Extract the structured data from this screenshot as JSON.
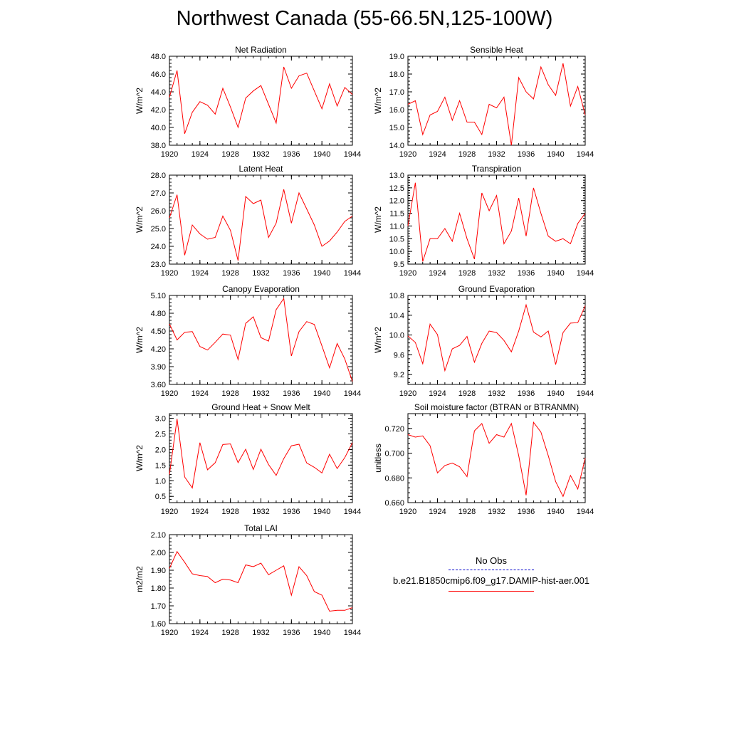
{
  "figure": {
    "title": "Northwest Canada (55-66.5N,125-100W)"
  },
  "legend": {
    "entries": [
      {
        "label": "No Obs",
        "color": "#0000cc",
        "style": "dashed"
      },
      {
        "label": "b.e21.B1850cmip6.f09_g17.DAMIP-hist-aer.001",
        "color": "#ff0000",
        "style": "solid"
      }
    ]
  },
  "chart_data": [
    {
      "type": "line",
      "title": "Net Radiation",
      "ylabel": "W/m^2",
      "xlim": [
        1920,
        1944
      ],
      "ylim": [
        38,
        48
      ],
      "xticks": [
        "1920",
        "1924",
        "1928",
        "1932",
        "1936",
        "1940",
        "1944"
      ],
      "yticks": [
        "38.0",
        "40.0",
        "42.0",
        "44.0",
        "46.0",
        "48.0"
      ],
      "x": [
        1920,
        1921,
        1922,
        1923,
        1924,
        1925,
        1926,
        1927,
        1928,
        1929,
        1930,
        1931,
        1932,
        1933,
        1934,
        1935,
        1936,
        1937,
        1938,
        1939,
        1940,
        1941,
        1942,
        1943,
        1944
      ],
      "series": [
        {
          "values": [
            43.4,
            46.4,
            39.3,
            41.7,
            42.9,
            42.5,
            41.5,
            44.4,
            42.3,
            40.0,
            43.3,
            44.1,
            44.7,
            42.6,
            40.5,
            46.8,
            44.4,
            45.8,
            46.1,
            44.1,
            42.1,
            44.9,
            42.4,
            44.5,
            43.7
          ],
          "color": "#ff0000"
        }
      ]
    },
    {
      "type": "line",
      "title": "Sensible Heat",
      "ylabel": "W/m^2",
      "xlim": [
        1920,
        1944
      ],
      "ylim": [
        14,
        19
      ],
      "xticks": [
        "1920",
        "1924",
        "1928",
        "1932",
        "1936",
        "1940",
        "1944"
      ],
      "yticks": [
        "14.0",
        "15.0",
        "16.0",
        "17.0",
        "18.0",
        "19.0"
      ],
      "x": [
        1920,
        1921,
        1922,
        1923,
        1924,
        1925,
        1926,
        1927,
        1928,
        1929,
        1930,
        1931,
        1932,
        1933,
        1934,
        1935,
        1936,
        1937,
        1938,
        1939,
        1940,
        1941,
        1942,
        1943,
        1944
      ],
      "series": [
        {
          "values": [
            16.3,
            16.5,
            14.6,
            15.7,
            15.9,
            16.7,
            15.4,
            16.5,
            15.3,
            15.3,
            14.6,
            16.3,
            16.1,
            16.7,
            14.0,
            17.8,
            17.0,
            16.6,
            18.4,
            17.4,
            16.8,
            18.6,
            16.2,
            17.3,
            15.7
          ],
          "color": "#ff0000"
        }
      ]
    },
    {
      "type": "line",
      "title": "Latent Heat",
      "ylabel": "W/m^2",
      "xlim": [
        1920,
        1944
      ],
      "ylim": [
        23,
        28
      ],
      "xticks": [
        "1920",
        "1924",
        "1928",
        "1932",
        "1936",
        "1940",
        "1944"
      ],
      "yticks": [
        "23.0",
        "24.0",
        "25.0",
        "26.0",
        "27.0",
        "28.0"
      ],
      "x": [
        1920,
        1921,
        1922,
        1923,
        1924,
        1925,
        1926,
        1927,
        1928,
        1929,
        1930,
        1931,
        1932,
        1933,
        1934,
        1935,
        1936,
        1937,
        1938,
        1939,
        1940,
        1941,
        1942,
        1943,
        1944
      ],
      "series": [
        {
          "values": [
            25.6,
            26.9,
            23.5,
            25.2,
            24.7,
            24.4,
            24.5,
            25.7,
            24.9,
            23.2,
            26.8,
            26.4,
            26.6,
            24.5,
            25.3,
            27.2,
            25.3,
            27.0,
            26.1,
            25.2,
            24.0,
            24.3,
            24.8,
            25.4,
            25.7
          ],
          "color": "#ff0000"
        }
      ]
    },
    {
      "type": "line",
      "title": "Transpiration",
      "ylabel": "W/m^2",
      "xlim": [
        1920,
        1944
      ],
      "ylim": [
        9.5,
        13.0
      ],
      "xticks": [
        "1920",
        "1924",
        "1928",
        "1932",
        "1936",
        "1940",
        "1944"
      ],
      "yticks": [
        "9.5",
        "10.0",
        "10.5",
        "11.0",
        "11.5",
        "12.0",
        "12.5",
        "13.0"
      ],
      "x": [
        1920,
        1921,
        1922,
        1923,
        1924,
        1925,
        1926,
        1927,
        1928,
        1929,
        1930,
        1931,
        1932,
        1933,
        1934,
        1935,
        1936,
        1937,
        1938,
        1939,
        1940,
        1941,
        1942,
        1943,
        1944
      ],
      "series": [
        {
          "values": [
            11.0,
            12.7,
            9.6,
            10.5,
            10.5,
            10.9,
            10.4,
            11.5,
            10.5,
            9.7,
            12.3,
            11.6,
            12.2,
            10.3,
            10.8,
            12.1,
            10.6,
            12.5,
            11.5,
            10.6,
            10.4,
            10.5,
            10.3,
            11.1,
            11.5
          ],
          "color": "#ff0000"
        }
      ]
    },
    {
      "type": "line",
      "title": "Canopy Evaporation",
      "ylabel": "W/m^2",
      "xlim": [
        1920,
        1944
      ],
      "ylim": [
        3.6,
        5.1
      ],
      "xticks": [
        "1920",
        "1924",
        "1928",
        "1932",
        "1936",
        "1940",
        "1944"
      ],
      "yticks": [
        "3.60",
        "3.90",
        "4.20",
        "4.50",
        "4.80",
        "5.10"
      ],
      "x": [
        1920,
        1921,
        1922,
        1923,
        1924,
        1925,
        1926,
        1927,
        1928,
        1929,
        1930,
        1931,
        1932,
        1933,
        1934,
        1935,
        1936,
        1937,
        1938,
        1939,
        1940,
        1941,
        1942,
        1943,
        1944
      ],
      "series": [
        {
          "values": [
            4.62,
            4.35,
            4.48,
            4.49,
            4.24,
            4.18,
            4.31,
            4.45,
            4.43,
            4.02,
            4.63,
            4.74,
            4.39,
            4.33,
            4.86,
            5.05,
            4.08,
            4.49,
            4.66,
            4.61,
            4.25,
            3.88,
            4.29,
            4.03,
            3.65
          ],
          "color": "#ff0000"
        }
      ]
    },
    {
      "type": "line",
      "title": "Ground Evaporation",
      "ylabel": "W/m^2",
      "xlim": [
        1920,
        1944
      ],
      "ylim": [
        9.0,
        10.8
      ],
      "xticks": [
        "1920",
        "1924",
        "1928",
        "1932",
        "1936",
        "1940",
        "1944"
      ],
      "yticks": [
        "9.2",
        "9.6",
        "10.0",
        "10.4",
        "10.8"
      ],
      "x": [
        1920,
        1921,
        1922,
        1923,
        1924,
        1925,
        1926,
        1927,
        1928,
        1929,
        1930,
        1931,
        1932,
        1933,
        1934,
        1935,
        1936,
        1937,
        1938,
        1939,
        1940,
        1941,
        1942,
        1943,
        1944
      ],
      "series": [
        {
          "values": [
            9.98,
            9.85,
            9.42,
            10.22,
            10.01,
            9.28,
            9.72,
            9.79,
            9.97,
            9.45,
            9.83,
            10.08,
            10.05,
            9.89,
            9.66,
            10.08,
            10.61,
            10.06,
            9.96,
            10.08,
            9.4,
            10.05,
            10.24,
            10.25,
            10.59
          ],
          "color": "#ff0000"
        }
      ]
    },
    {
      "type": "line",
      "title": "Ground Heat + Snow Melt",
      "ylabel": "W/m^2",
      "xlim": [
        1920,
        1944
      ],
      "ylim": [
        0.3,
        3.15
      ],
      "xticks": [
        "1920",
        "1924",
        "1928",
        "1932",
        "1936",
        "1940",
        "1944"
      ],
      "yticks": [
        "0.5",
        "1.0",
        "1.5",
        "2.0",
        "2.5",
        "3.0"
      ],
      "x": [
        1920,
        1921,
        1922,
        1923,
        1924,
        1925,
        1926,
        1927,
        1928,
        1929,
        1930,
        1931,
        1932,
        1933,
        1934,
        1935,
        1936,
        1937,
        1938,
        1939,
        1940,
        1941,
        1942,
        1943,
        1944
      ],
      "series": [
        {
          "values": [
            1.2,
            2.98,
            1.12,
            0.77,
            2.22,
            1.35,
            1.58,
            2.16,
            2.18,
            1.58,
            2.01,
            1.36,
            2.01,
            1.52,
            1.17,
            1.71,
            2.12,
            2.17,
            1.57,
            1.43,
            1.25,
            1.85,
            1.39,
            1.74,
            2.22
          ],
          "color": "#ff0000"
        }
      ]
    },
    {
      "type": "line",
      "title": "Soil moisture factor (BTRAN or BTRANMN)",
      "ylabel": "unitless",
      "xlim": [
        1920,
        1944
      ],
      "ylim": [
        0.66,
        0.732
      ],
      "xticks": [
        "1920",
        "1924",
        "1928",
        "1932",
        "1936",
        "1940",
        "1944"
      ],
      "yticks": [
        "0.660",
        "0.680",
        "0.700",
        "0.720"
      ],
      "x": [
        1920,
        1921,
        1922,
        1923,
        1924,
        1925,
        1926,
        1927,
        1928,
        1929,
        1930,
        1931,
        1932,
        1933,
        1934,
        1935,
        1936,
        1937,
        1938,
        1939,
        1940,
        1941,
        1942,
        1943,
        1944
      ],
      "series": [
        {
          "values": [
            0.715,
            0.713,
            0.714,
            0.706,
            0.684,
            0.69,
            0.692,
            0.689,
            0.681,
            0.718,
            0.724,
            0.708,
            0.715,
            0.713,
            0.724,
            0.698,
            0.666,
            0.725,
            0.717,
            0.698,
            0.677,
            0.665,
            0.682,
            0.671,
            0.696
          ],
          "color": "#ff0000"
        }
      ]
    },
    {
      "type": "line",
      "title": "Total LAI",
      "ylabel": "m2/m2",
      "xlim": [
        1920,
        1944
      ],
      "ylim": [
        1.6,
        2.1
      ],
      "xticks": [
        "1920",
        "1924",
        "1928",
        "1932",
        "1936",
        "1940",
        "1944"
      ],
      "yticks": [
        "1.60",
        "1.70",
        "1.80",
        "1.90",
        "2.00",
        "2.10"
      ],
      "x": [
        1920,
        1921,
        1922,
        1923,
        1924,
        1925,
        1926,
        1927,
        1928,
        1929,
        1930,
        1931,
        1932,
        1933,
        1934,
        1935,
        1936,
        1937,
        1938,
        1939,
        1940,
        1941,
        1942,
        1943,
        1944
      ],
      "series": [
        {
          "values": [
            1.91,
            2.005,
            1.945,
            1.88,
            1.87,
            1.865,
            1.83,
            1.85,
            1.845,
            1.83,
            1.93,
            1.92,
            1.94,
            1.875,
            1.9,
            1.925,
            1.76,
            1.92,
            1.87,
            1.78,
            1.76,
            1.67,
            1.675,
            1.675,
            1.69
          ],
          "color": "#ff0000"
        }
      ]
    }
  ]
}
